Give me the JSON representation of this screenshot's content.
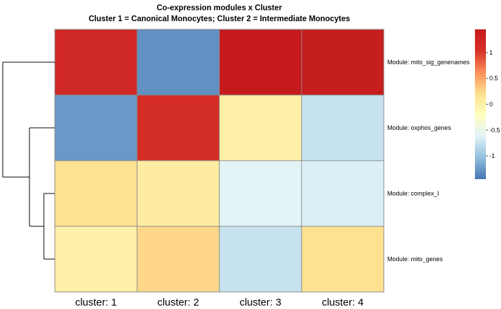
{
  "chart_data": {
    "type": "heatmap",
    "title": "Co-expression modules x Cluster",
    "subtitle": "Cluster 1 = Canonical Monocytes; Cluster 2 = Intermediate Monocytes",
    "columns": [
      "cluster:  1",
      "cluster:  2",
      "cluster:  3",
      "cluster:  4"
    ],
    "rows": [
      "Module:  mito_sig_genenames",
      "Module:  oxphos_genes",
      "Module:  complex_I",
      "Module:  mito_genes"
    ],
    "values": [
      [
        1.2,
        -1.3,
        1.45,
        1.4
      ],
      [
        -1.25,
        1.1,
        0.0,
        -0.75
      ],
      [
        0.2,
        0.05,
        -0.6,
        -0.65
      ],
      [
        0.0,
        0.25,
        -0.75,
        0.2
      ]
    ],
    "colorbar": {
      "ticks": [
        1,
        0.5,
        0,
        -0.5,
        -1
      ],
      "tick_labels": [
        "1",
        "0.5",
        "0",
        "-0.5",
        "-1"
      ],
      "range": [
        -1.45,
        1.45
      ],
      "colors": [
        "#4575b4",
        "#91bfdb",
        "#e0f3f8",
        "#ffffbf",
        "#fee090",
        "#fc8d59",
        "#d73027",
        "#c41a1c"
      ]
    },
    "row_dendrogram": "mito_sig_genenames joins last; oxphos_genes joins (complex_I, mito_genes)"
  }
}
